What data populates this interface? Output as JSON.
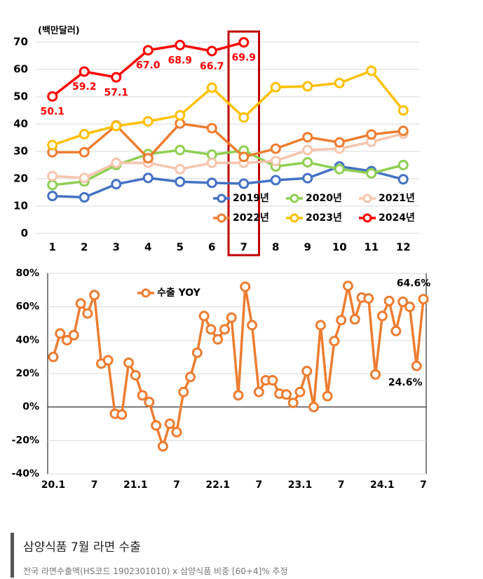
{
  "chart_data": [
    {
      "type": "line",
      "y_label": "(백만달러)",
      "categories": [
        "1",
        "2",
        "3",
        "4",
        "5",
        "6",
        "7",
        "8",
        "9",
        "10",
        "11",
        "12"
      ],
      "ylim": [
        0,
        70
      ],
      "yticks": [
        0,
        10,
        20,
        30,
        40,
        50,
        60,
        70
      ],
      "grid": true,
      "legend": "bottom-right",
      "series": [
        {
          "name": "2019년",
          "color": "#4472c4",
          "values": [
            13.7,
            13.2,
            18,
            20.3,
            18.9,
            18.5,
            18.2,
            19.5,
            20.2,
            24.5,
            22.8,
            19.8
          ]
        },
        {
          "name": "2020년",
          "color": "#8fcf52",
          "values": [
            17.7,
            19,
            25,
            29,
            30.5,
            28.8,
            30.3,
            24.5,
            26,
            23.5,
            22,
            25
          ]
        },
        {
          "name": "2021년",
          "color": "#f6c5ad",
          "values": [
            21,
            20.3,
            25.8,
            25.8,
            23.5,
            25.8,
            25.8,
            26.5,
            30.5,
            31,
            33.5,
            36.5
          ]
        },
        {
          "name": "2022년",
          "color": "#ed7d31",
          "values": [
            29.7,
            29.7,
            39.5,
            27.5,
            40.2,
            38.5,
            28,
            31,
            35.2,
            33.3,
            36.2,
            37.5
          ]
        },
        {
          "name": "2023년",
          "color": "#ffc000",
          "values": [
            32.3,
            36.3,
            39.3,
            41,
            43.2,
            53.3,
            42.4,
            53.5,
            53.8,
            55,
            59.5,
            45
          ]
        },
        {
          "name": "2024년",
          "color": "#ff0000",
          "values": [
            50.1,
            59.2,
            57.1,
            67.0,
            68.9,
            66.7,
            69.9,
            null,
            null,
            null,
            null,
            null
          ],
          "value_labels": [
            "50.1",
            "59.2",
            "57.1",
            "67.0",
            "68.9",
            "66.7",
            "69.9",
            null,
            null,
            null,
            null,
            null
          ]
        }
      ]
    },
    {
      "type": "line",
      "categories": [
        "20.1",
        null,
        null,
        null,
        null,
        null,
        "7",
        null,
        null,
        null,
        null,
        null,
        "21.1",
        null,
        null,
        null,
        null,
        null,
        "7",
        null,
        null,
        null,
        null,
        null,
        "22.1",
        null,
        null,
        null,
        null,
        null,
        "7",
        null,
        null,
        null,
        null,
        null,
        "23.1",
        null,
        null,
        null,
        null,
        null,
        "7",
        null,
        null,
        null,
        null,
        null,
        "24.1",
        null,
        null,
        null,
        null,
        null,
        "7"
      ],
      "ylim": [
        -40,
        80
      ],
      "yticks": [
        {
          "value": -40,
          "label": "-40%"
        },
        {
          "value": -20,
          "label": "-20%"
        },
        {
          "value": 0,
          "label": "0%"
        },
        {
          "value": 20,
          "label": "20%"
        },
        {
          "value": 40,
          "label": "40%"
        },
        {
          "value": 60,
          "label": "60%"
        },
        {
          "value": 80,
          "label": "80%"
        }
      ],
      "grid": true,
      "legend": "top-left",
      "series": [
        {
          "name": "수출 YOY",
          "color": "#ed7d31",
          "values": [
            30,
            44,
            40,
            43,
            62,
            56,
            67,
            26,
            28,
            -4,
            -4.5,
            26.5,
            19,
            7,
            3,
            -11,
            -23.5,
            -10,
            -15,
            9,
            18,
            32.5,
            54.5,
            46.5,
            40.5,
            46.5,
            53.5,
            7,
            72,
            49,
            9,
            16,
            16,
            8,
            7.5,
            2.5,
            9,
            21.5,
            0,
            49,
            6.5,
            39.5,
            52,
            72.5,
            52.5,
            65.5,
            65,
            19.5,
            54.5,
            63.5,
            45.5,
            63,
            60,
            24.6,
            64.6
          ],
          "value_labels": [
            null,
            null,
            null,
            null,
            null,
            null,
            null,
            null,
            null,
            null,
            null,
            null,
            null,
            null,
            null,
            null,
            null,
            null,
            null,
            null,
            null,
            null,
            null,
            null,
            null,
            null,
            null,
            null,
            null,
            null,
            null,
            null,
            null,
            null,
            null,
            null,
            null,
            null,
            null,
            null,
            null,
            null,
            null,
            null,
            null,
            null,
            null,
            null,
            null,
            null,
            null,
            null,
            null,
            "24.6%",
            "64.6%"
          ]
        }
      ]
    }
  ],
  "caption": {
    "title": "삼양식품 7월 라면 수출",
    "source": "전국 라면수출액(HS코드 1902301010) x 삼양식품 비중 [60+4]% 추정"
  }
}
